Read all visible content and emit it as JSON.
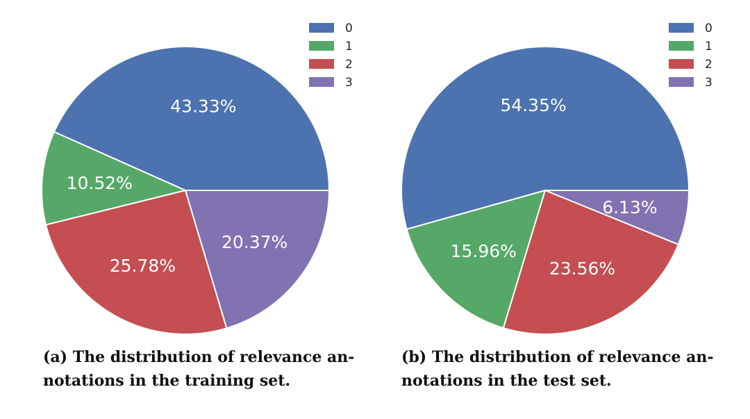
{
  "chart_data": [
    {
      "type": "pie",
      "categories": [
        "0",
        "1",
        "2",
        "3"
      ],
      "values": [
        43.33,
        10.52,
        25.78,
        20.37
      ],
      "labels": [
        "43.33%",
        "10.52%",
        "25.78%",
        "20.37%"
      ],
      "colors": [
        "#4C72B0",
        "#55A868",
        "#C44E52",
        "#8172B2"
      ],
      "legend": "top-right",
      "caption_lines": [
        "(a) The distribution of relevance an-",
        "notations in the training set."
      ]
    },
    {
      "type": "pie",
      "categories": [
        "0",
        "1",
        "2",
        "3"
      ],
      "values": [
        54.35,
        15.96,
        23.56,
        6.13
      ],
      "labels": [
        "54.35%",
        "15.96%",
        "23.56%",
        "6.13%"
      ],
      "colors": [
        "#4C72B0",
        "#55A868",
        "#C44E52",
        "#8172B2"
      ],
      "legend": "top-right",
      "caption_lines": [
        "(b) The distribution of relevance an-",
        "notations in the test set."
      ]
    }
  ]
}
